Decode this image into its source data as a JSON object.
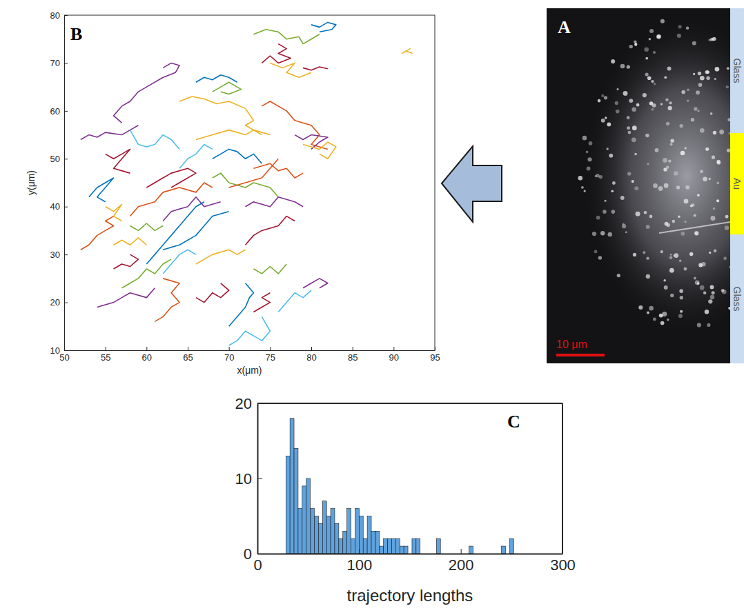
{
  "chart_data": [
    {
      "type": "line",
      "title": "B",
      "xlabel": "x(μm)",
      "ylabel": "y(μm)",
      "xlim": [
        50,
        95
      ],
      "xticks": [
        50,
        55,
        60,
        65,
        70,
        75,
        80,
        85,
        90,
        95
      ],
      "ylim": [
        10,
        80
      ],
      "yticks": [
        10,
        20,
        30,
        40,
        50,
        60,
        70,
        80
      ],
      "series": [
        {
          "color": "#0072BD",
          "x": [
            80,
            81,
            82,
            83,
            82.5,
            81
          ],
          "values": [
            78,
            77.5,
            78.5,
            78,
            77,
            76.5
          ]
        },
        {
          "color": "#77AC30",
          "x": [
            73,
            74.5,
            76,
            77,
            78.5,
            79,
            80,
            81
          ],
          "values": [
            76,
            77,
            76.5,
            75,
            75.5,
            74,
            75,
            76
          ]
        },
        {
          "color": "#EDB120",
          "x": [
            91,
            92,
            91.5,
            92.3
          ],
          "values": [
            72,
            73,
            72.5,
            72
          ]
        },
        {
          "color": "#7E2F8E",
          "x": [
            62,
            63,
            64,
            63.5,
            62,
            60,
            59,
            58,
            57,
            56,
            57
          ],
          "values": [
            69,
            70,
            69.5,
            68,
            67,
            65,
            64,
            62,
            61,
            59,
            57.5
          ]
        },
        {
          "color": "#77AC30",
          "x": [
            68,
            69,
            70,
            71,
            71.5,
            70,
            69
          ],
          "values": [
            64,
            65,
            66,
            65,
            64.5,
            63.5,
            64
          ]
        },
        {
          "color": "#EDB120",
          "x": [
            64,
            65.5,
            67,
            68.5,
            70,
            72,
            73,
            72,
            74
          ],
          "values": [
            62,
            63,
            62.5,
            61.5,
            62,
            60.5,
            58,
            57,
            55
          ]
        },
        {
          "color": "#7E2F8E",
          "x": [
            52,
            53,
            54,
            55,
            57,
            58,
            59
          ],
          "values": [
            54,
            55,
            54.5,
            55.5,
            55,
            56,
            57
          ]
        },
        {
          "color": "#A2142F",
          "x": [
            76,
            77,
            76,
            77.5,
            76,
            75,
            74
          ],
          "values": [
            74,
            73,
            72,
            71,
            70,
            71.5,
            70
          ]
        },
        {
          "color": "#EDB120",
          "x": [
            75,
            76.5,
            78,
            77,
            78.5,
            80
          ],
          "values": [
            70,
            69,
            70,
            68,
            67,
            68
          ]
        },
        {
          "color": "#A2142F",
          "x": [
            79,
            80,
            81,
            82
          ],
          "values": [
            69,
            68.5,
            69.2,
            68.8
          ]
        },
        {
          "color": "#0072BD",
          "x": [
            66,
            67,
            68,
            69,
            70,
            71
          ],
          "values": [
            66,
            67,
            66.5,
            67.5,
            67,
            66
          ]
        },
        {
          "color": "#D95319",
          "x": [
            74,
            75,
            77,
            78,
            80,
            81,
            80,
            82
          ],
          "values": [
            61,
            62,
            60,
            58,
            57,
            55,
            53,
            52
          ]
        },
        {
          "color": "#4DBEEE",
          "x": [
            58,
            59,
            60,
            61,
            62,
            63,
            64
          ],
          "values": [
            56,
            53,
            52.5,
            53,
            55,
            54,
            52
          ]
        },
        {
          "color": "#7E2F8E",
          "x": [
            78,
            79,
            80,
            82,
            81,
            80
          ],
          "values": [
            55,
            54,
            55,
            54.5,
            53.5,
            52
          ]
        },
        {
          "color": "#EDB120",
          "x": [
            79,
            81,
            82,
            83,
            82,
            81
          ],
          "values": [
            53,
            52,
            53.5,
            52.5,
            50,
            51
          ]
        },
        {
          "color": "#A2142F",
          "x": [
            55,
            56,
            57,
            58,
            57,
            56,
            58
          ],
          "values": [
            51,
            50,
            51,
            52,
            50,
            48,
            47
          ]
        },
        {
          "color": "#0072BD",
          "x": [
            68,
            69,
            70,
            71,
            72,
            73,
            74
          ],
          "values": [
            50,
            51,
            52,
            51.5,
            50,
            51,
            49
          ]
        },
        {
          "color": "#D95319",
          "x": [
            73,
            75,
            76,
            77,
            78,
            79
          ],
          "values": [
            48,
            49,
            47.5,
            48,
            46,
            47
          ]
        },
        {
          "color": "#EDB120",
          "x": [
            66,
            68,
            70,
            72,
            73,
            75
          ],
          "values": [
            54,
            55,
            56,
            55,
            56,
            55
          ]
        },
        {
          "color": "#77AC30",
          "x": [
            68,
            69,
            70,
            72,
            73,
            75,
            76
          ],
          "values": [
            46,
            47,
            45,
            44,
            45,
            44,
            42
          ]
        },
        {
          "color": "#A2142F",
          "x": [
            60,
            62,
            63,
            65,
            66,
            64,
            63
          ],
          "values": [
            44,
            46,
            47,
            48,
            47,
            45,
            44
          ]
        },
        {
          "color": "#D95319",
          "x": [
            58,
            59,
            61,
            62,
            64,
            66,
            67,
            68
          ],
          "values": [
            38,
            40,
            41,
            43,
            44,
            43,
            45,
            44
          ]
        },
        {
          "color": "#0072BD",
          "x": [
            53,
            54,
            55,
            56,
            55,
            54,
            55
          ],
          "values": [
            42,
            44,
            45,
            46,
            44,
            42,
            41
          ]
        },
        {
          "color": "#EDB120",
          "x": [
            55,
            56,
            57,
            56,
            57
          ],
          "values": [
            40,
            39,
            40.5,
            38,
            37
          ]
        },
        {
          "color": "#D95319",
          "x": [
            52,
            53,
            54,
            55,
            56,
            55,
            56
          ],
          "values": [
            31,
            32,
            34,
            35,
            36,
            37,
            38
          ]
        },
        {
          "color": "#EDB120",
          "x": [
            56,
            57,
            58,
            59,
            60
          ],
          "values": [
            32,
            33,
            32,
            33.5,
            32
          ]
        },
        {
          "color": "#77AC30",
          "x": [
            58,
            59,
            60,
            61,
            62
          ],
          "values": [
            36,
            35,
            36.5,
            35,
            36
          ]
        },
        {
          "color": "#0072BD",
          "x": [
            60,
            61,
            62,
            63,
            64,
            65,
            66,
            67
          ],
          "values": [
            28,
            30,
            32,
            34,
            36,
            38,
            40,
            41
          ]
        },
        {
          "color": "#0072BD",
          "x": [
            62,
            64,
            66,
            67,
            68,
            70
          ],
          "values": [
            31,
            32,
            34,
            36,
            38,
            39
          ]
        },
        {
          "color": "#7E2F8E",
          "x": [
            62,
            63,
            65,
            66,
            67,
            69
          ],
          "values": [
            37,
            39,
            40,
            42,
            40,
            41
          ]
        },
        {
          "color": "#77AC30",
          "x": [
            57,
            58,
            59,
            60,
            61,
            62,
            63
          ],
          "values": [
            23,
            24,
            25,
            27,
            26,
            28,
            29
          ]
        },
        {
          "color": "#7E2F8E",
          "x": [
            54,
            56,
            57,
            58,
            60,
            61
          ],
          "values": [
            19,
            20,
            21,
            22,
            21,
            23
          ]
        },
        {
          "color": "#A2142F",
          "x": [
            56,
            57,
            58,
            59,
            58
          ],
          "values": [
            27,
            28,
            27.5,
            29,
            30
          ]
        },
        {
          "color": "#D95319",
          "x": [
            61,
            62,
            63,
            64,
            63,
            64,
            62
          ],
          "values": [
            16,
            17,
            19,
            20,
            22,
            24,
            25
          ]
        },
        {
          "color": "#A2142F",
          "x": [
            66,
            67,
            68,
            69,
            70,
            69
          ],
          "values": [
            21,
            20,
            22,
            21,
            22.5,
            24
          ]
        },
        {
          "color": "#0072BD",
          "x": [
            70,
            71,
            72,
            72.5,
            73,
            72
          ],
          "values": [
            15,
            17,
            19,
            21,
            22,
            24
          ]
        },
        {
          "color": "#4DBEEE",
          "x": [
            70,
            71,
            72,
            73,
            74,
            75,
            74
          ],
          "values": [
            11,
            12,
            14,
            13,
            12,
            14,
            17
          ]
        },
        {
          "color": "#A2142F",
          "x": [
            73,
            74,
            75,
            74,
            75
          ],
          "values": [
            18,
            19,
            20,
            21,
            22
          ]
        },
        {
          "color": "#4DBEEE",
          "x": [
            76,
            77,
            78,
            79,
            80
          ],
          "values": [
            18,
            20,
            22,
            21,
            22.5
          ]
        },
        {
          "color": "#7E2F8E",
          "x": [
            79,
            80,
            81,
            82,
            81
          ],
          "values": [
            23,
            24,
            25,
            24,
            23
          ]
        },
        {
          "color": "#EDB120",
          "x": [
            66,
            67,
            68,
            70,
            71,
            72
          ],
          "values": [
            28,
            29,
            30,
            31,
            30,
            31
          ]
        },
        {
          "color": "#A2142F",
          "x": [
            72,
            73,
            74,
            76,
            77,
            78
          ],
          "values": [
            32,
            34,
            35,
            36,
            38,
            37
          ]
        },
        {
          "color": "#7E2F8E",
          "x": [
            72,
            73,
            75,
            76,
            78,
            79
          ],
          "values": [
            40,
            41,
            40,
            42,
            41,
            40
          ]
        },
        {
          "color": "#4DBEEE",
          "x": [
            62,
            63,
            64,
            65,
            66
          ],
          "values": [
            26,
            28,
            30,
            31,
            30
          ]
        },
        {
          "color": "#77AC30",
          "x": [
            73,
            74,
            75,
            76,
            77
          ],
          "values": [
            27,
            26,
            27.5,
            26,
            28
          ]
        },
        {
          "color": "#D95319",
          "x": [
            70,
            72,
            74,
            75,
            76
          ],
          "values": [
            44,
            45,
            46,
            48,
            50
          ]
        },
        {
          "color": "#4DBEEE",
          "x": [
            64,
            65,
            66,
            67,
            68
          ],
          "values": [
            48,
            50,
            51,
            53,
            52
          ]
        }
      ]
    },
    {
      "type": "histogram",
      "title": "C",
      "xlabel": "trajectory lengths",
      "color": "#5FA2DD",
      "xlim": [
        0,
        300
      ],
      "xticks": [
        0,
        100,
        200,
        300
      ],
      "ylim": [
        0,
        20
      ],
      "yticks": [
        0,
        10,
        20
      ],
      "bins": [
        28,
        32,
        36,
        40,
        44,
        48,
        52,
        56,
        60,
        64,
        68,
        72,
        76,
        80,
        84,
        88,
        92,
        96,
        100,
        104,
        108,
        112,
        116,
        120,
        124,
        128,
        132,
        136,
        140,
        144,
        148,
        152,
        156,
        160,
        164,
        168,
        172,
        176,
        180,
        184,
        188,
        192,
        196,
        200,
        204,
        208,
        212,
        216,
        220,
        224,
        228,
        232,
        236,
        240,
        244,
        248,
        252
      ],
      "values": [
        13,
        18,
        14,
        6,
        9,
        10,
        6,
        5,
        4,
        7,
        5,
        6,
        4,
        2,
        3,
        6,
        2,
        6,
        5,
        2,
        5,
        3,
        3,
        1,
        2,
        2,
        2,
        2,
        1,
        1,
        0,
        2,
        2,
        0,
        0,
        0,
        0,
        2,
        0,
        0,
        0,
        0,
        0,
        0,
        0,
        1,
        0,
        0,
        0,
        0,
        0,
        0,
        0,
        1,
        0,
        2
      ]
    }
  ],
  "image": {
    "letter": "A",
    "strip": [
      "Glass",
      "Au",
      "Glass"
    ],
    "scale_bar": "10 μm"
  }
}
